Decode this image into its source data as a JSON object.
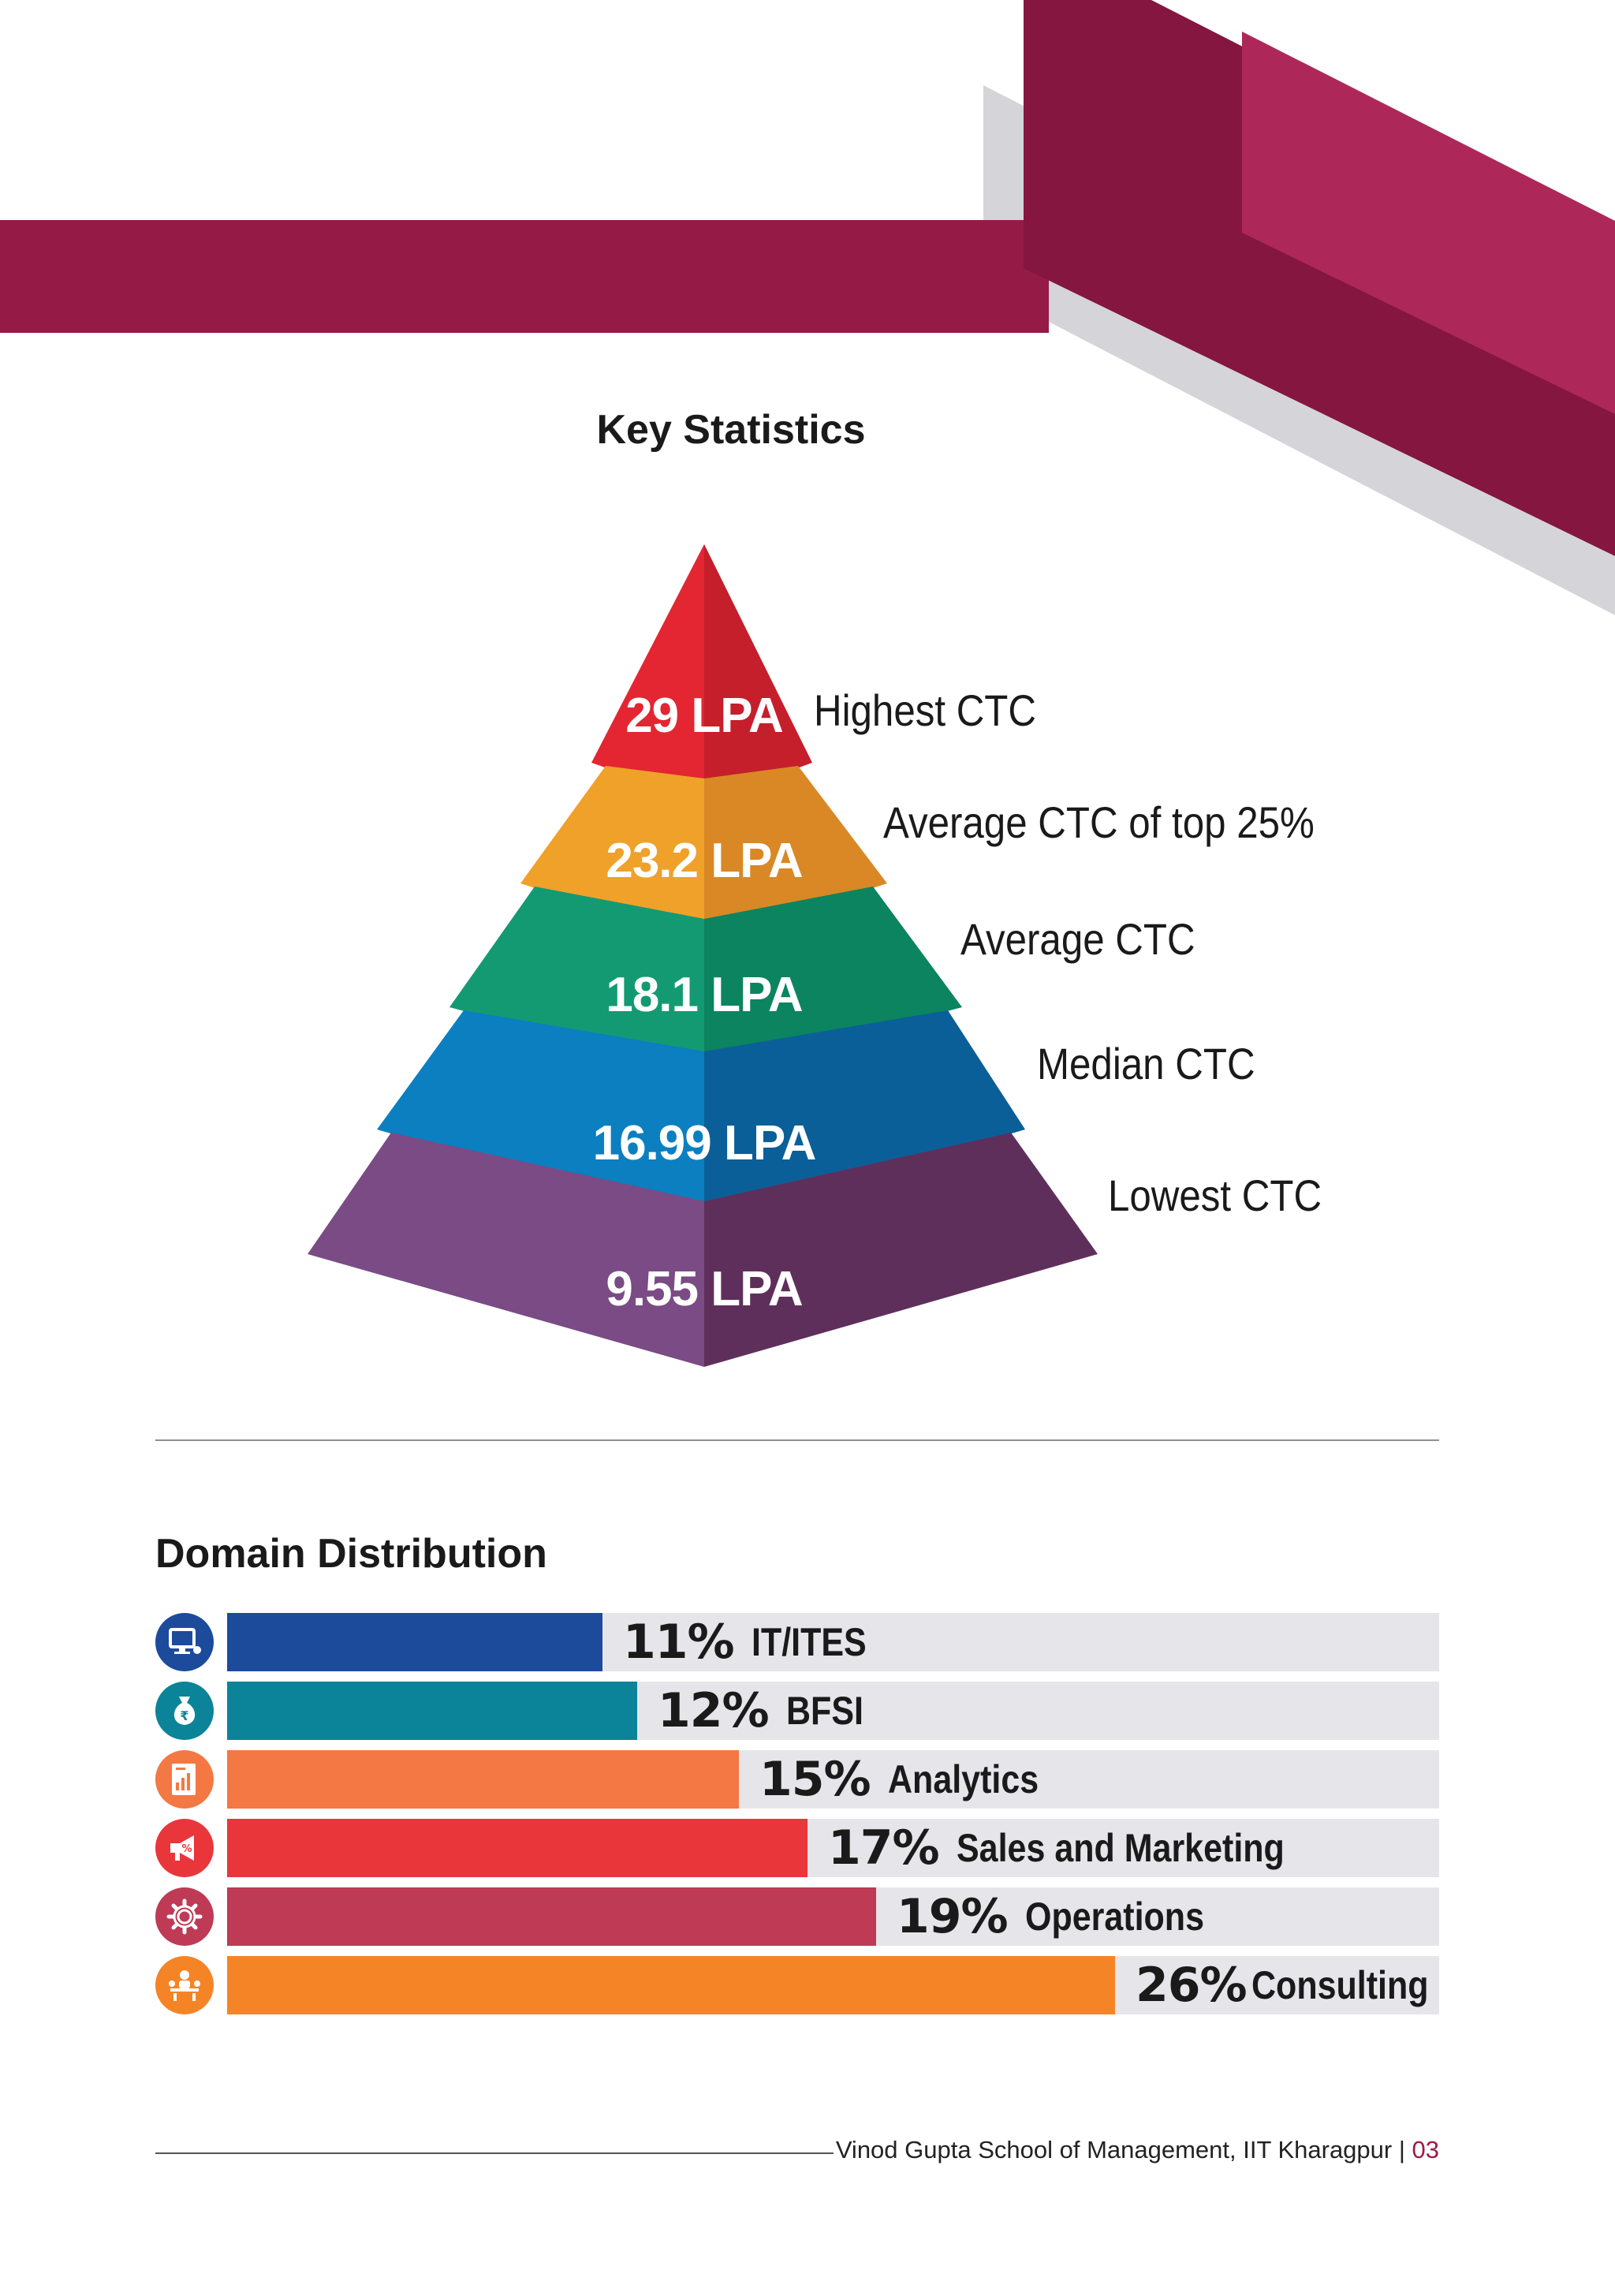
{
  "key_statistics": {
    "title": "Key Statistics",
    "tiers": [
      {
        "value": "29 LPA",
        "label": "Highest CTC"
      },
      {
        "value": "23.2 LPA",
        "label": "Average CTC of top 25%"
      },
      {
        "value": "18.1 LPA",
        "label": "Average CTC"
      },
      {
        "value": "16.99 LPA",
        "label": "Median CTC"
      },
      {
        "value": "9.55 LPA",
        "label": "Lowest CTC"
      }
    ],
    "tier_colors": [
      [
        "#e32631",
        "#c41f2b"
      ],
      [
        "#efa12a",
        "#d98825"
      ],
      [
        "#139a72",
        "#0b845f"
      ],
      [
        "#0b7fc0",
        "#0b5f98"
      ],
      [
        "#7a4b84",
        "#5f2f5c"
      ]
    ]
  },
  "domain_distribution": {
    "title": "Domain Distribution",
    "items": [
      {
        "percent": 11,
        "label": "11%",
        "name": "IT/ITES",
        "color": "#1c4b9c",
        "icon": "computer-icon"
      },
      {
        "percent": 12,
        "label": "12%",
        "name": "BFSI",
        "color": "#0b8499",
        "icon": "money-bag-icon"
      },
      {
        "percent": 15,
        "label": "15%",
        "name": "Analytics",
        "color": "#f47843",
        "icon": "analytics-report-icon"
      },
      {
        "percent": 17,
        "label": "17%",
        "name": "Sales and Marketing",
        "color": "#e9363b",
        "icon": "megaphone-icon"
      },
      {
        "percent": 19,
        "label": "19%",
        "name": "Operations",
        "color": "#be3a55",
        "icon": "gear-icon"
      },
      {
        "percent": 26,
        "label": "26%",
        "name": "Consulting",
        "color": "#f58426",
        "icon": "consulting-meeting-icon"
      }
    ],
    "scale_max_percent": 35.5
  },
  "footer": {
    "text": "Vinod Gupta School of Management, IIT Kharagpur | ",
    "page": "03"
  },
  "theme": {
    "maroon": "#951a46",
    "maroon_dark": "#84163f",
    "maroon_light": "#ad2858",
    "grey_shadow": "#d5d4d9"
  }
}
